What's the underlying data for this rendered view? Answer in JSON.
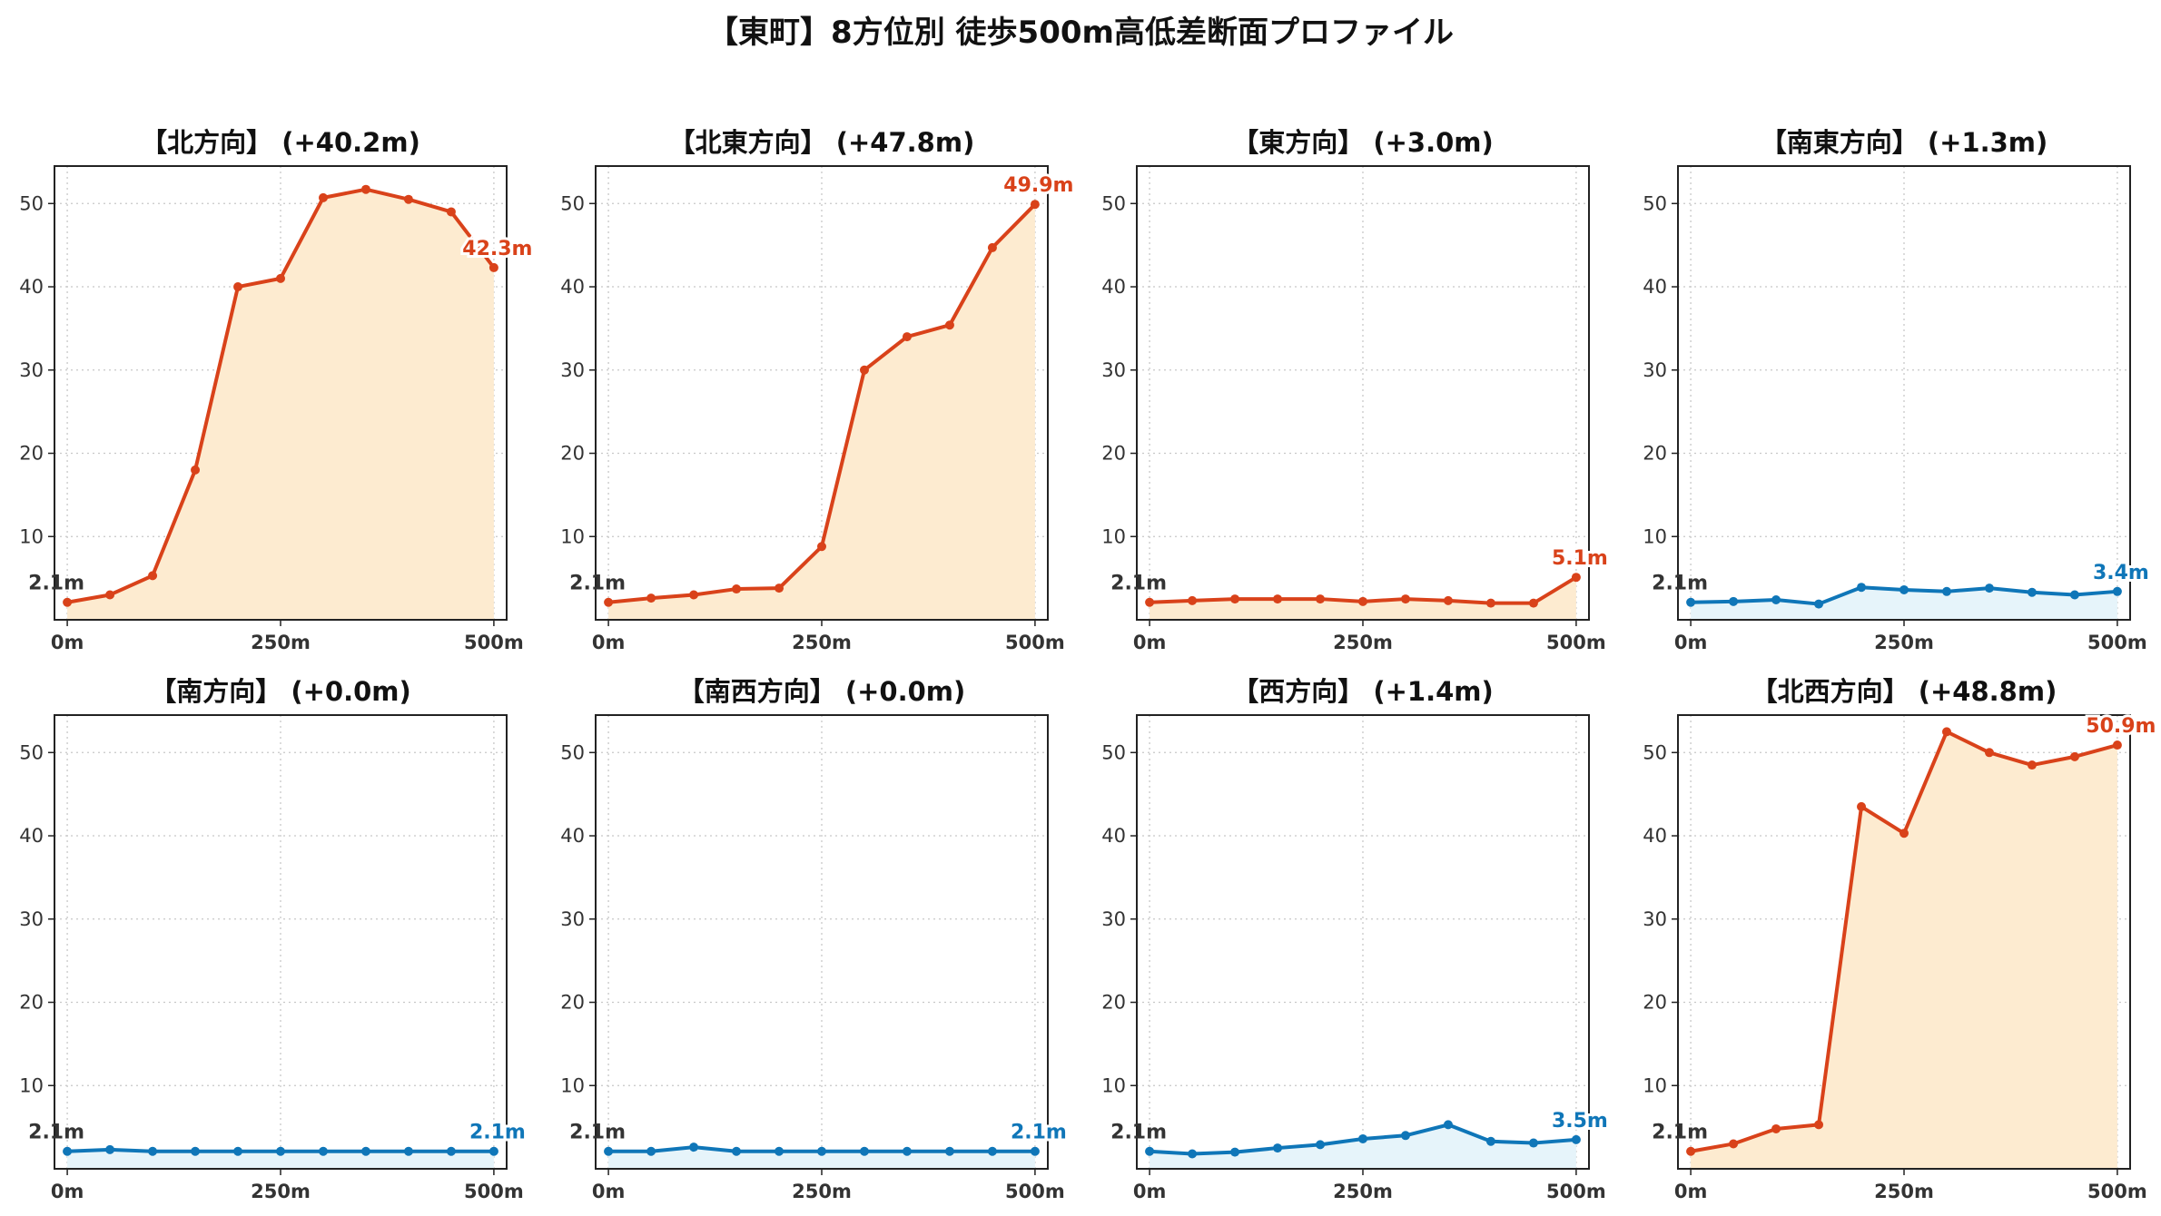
{
  "title": "【東町】8方位別 徒歩500m高低差断面プロファイル",
  "colors": {
    "up_line": "#d9421a",
    "up_fill": "#fdebd0",
    "flat_line": "#0f76b8",
    "flat_fill": "#e6f4fa",
    "grid": "#c8c8c8",
    "start_label": "#333333"
  },
  "chart_data": [
    {
      "type": "line",
      "title": "【北方向】 (+40.2m)",
      "trend": "up",
      "x": [
        0,
        50,
        100,
        150,
        200,
        250,
        300,
        350,
        400,
        450,
        500
      ],
      "values": [
        2.1,
        3.0,
        5.3,
        18.0,
        40.0,
        41.0,
        50.7,
        51.7,
        50.5,
        49.0,
        42.3
      ],
      "start_label": "2.1m",
      "end_label": "42.3m",
      "xticks": [
        "0m",
        "250m",
        "500m"
      ],
      "yticks": [
        10,
        20,
        30,
        40,
        50
      ],
      "ylim": [
        0,
        54.5
      ],
      "xlim": [
        -15,
        515
      ],
      "grid": true
    },
    {
      "type": "line",
      "title": "【北東方向】 (+47.8m)",
      "trend": "up",
      "x": [
        0,
        50,
        100,
        150,
        200,
        250,
        300,
        350,
        400,
        450,
        500
      ],
      "values": [
        2.1,
        2.6,
        3.0,
        3.7,
        3.8,
        8.8,
        30.0,
        34.0,
        35.4,
        44.7,
        49.9
      ],
      "start_label": "2.1m",
      "end_label": "49.9m",
      "xticks": [
        "0m",
        "250m",
        "500m"
      ],
      "yticks": [
        10,
        20,
        30,
        40,
        50
      ],
      "ylim": [
        0,
        54.5
      ],
      "xlim": [
        -15,
        515
      ],
      "grid": true
    },
    {
      "type": "line",
      "title": "【東方向】 (+3.0m)",
      "trend": "up",
      "x": [
        0,
        50,
        100,
        150,
        200,
        250,
        300,
        350,
        400,
        450,
        500
      ],
      "values": [
        2.1,
        2.3,
        2.5,
        2.5,
        2.5,
        2.2,
        2.5,
        2.3,
        2.0,
        2.0,
        5.1
      ],
      "start_label": "2.1m",
      "end_label": "5.1m",
      "xticks": [
        "0m",
        "250m",
        "500m"
      ],
      "yticks": [
        10,
        20,
        30,
        40,
        50
      ],
      "ylim": [
        0,
        54.5
      ],
      "xlim": [
        -15,
        515
      ],
      "grid": true
    },
    {
      "type": "line",
      "title": "【南東方向】 (+1.3m)",
      "trend": "flat",
      "x": [
        0,
        50,
        100,
        150,
        200,
        250,
        300,
        350,
        400,
        450,
        500
      ],
      "values": [
        2.1,
        2.2,
        2.4,
        1.9,
        3.9,
        3.6,
        3.4,
        3.8,
        3.3,
        3.0,
        3.4
      ],
      "start_label": "2.1m",
      "end_label": "3.4m",
      "xticks": [
        "0m",
        "250m",
        "500m"
      ],
      "yticks": [
        10,
        20,
        30,
        40,
        50
      ],
      "ylim": [
        0,
        54.5
      ],
      "xlim": [
        -15,
        515
      ],
      "grid": true
    },
    {
      "type": "line",
      "title": "【南方向】 (+0.0m)",
      "trend": "flat",
      "x": [
        0,
        50,
        100,
        150,
        200,
        250,
        300,
        350,
        400,
        450,
        500
      ],
      "values": [
        2.1,
        2.3,
        2.1,
        2.1,
        2.1,
        2.1,
        2.1,
        2.1,
        2.1,
        2.1,
        2.1
      ],
      "start_label": "2.1m",
      "end_label": "2.1m",
      "xticks": [
        "0m",
        "250m",
        "500m"
      ],
      "yticks": [
        10,
        20,
        30,
        40,
        50
      ],
      "ylim": [
        0,
        54.5
      ],
      "xlim": [
        -15,
        515
      ],
      "grid": true
    },
    {
      "type": "line",
      "title": "【南西方向】 (+0.0m)",
      "trend": "flat",
      "x": [
        0,
        50,
        100,
        150,
        200,
        250,
        300,
        350,
        400,
        450,
        500
      ],
      "values": [
        2.1,
        2.1,
        2.6,
        2.1,
        2.1,
        2.1,
        2.1,
        2.1,
        2.1,
        2.1,
        2.1
      ],
      "start_label": "2.1m",
      "end_label": "2.1m",
      "xticks": [
        "0m",
        "250m",
        "500m"
      ],
      "yticks": [
        10,
        20,
        30,
        40,
        50
      ],
      "ylim": [
        0,
        54.5
      ],
      "xlim": [
        -15,
        515
      ],
      "grid": true
    },
    {
      "type": "line",
      "title": "【西方向】 (+1.4m)",
      "trend": "flat",
      "x": [
        0,
        50,
        100,
        150,
        200,
        250,
        300,
        350,
        400,
        450,
        500
      ],
      "values": [
        2.1,
        1.8,
        2.0,
        2.5,
        2.9,
        3.6,
        4.0,
        5.3,
        3.3,
        3.1,
        3.5
      ],
      "start_label": "2.1m",
      "end_label": "3.5m",
      "xticks": [
        "0m",
        "250m",
        "500m"
      ],
      "yticks": [
        10,
        20,
        30,
        40,
        50
      ],
      "ylim": [
        0,
        54.5
      ],
      "xlim": [
        -15,
        515
      ],
      "grid": true
    },
    {
      "type": "line",
      "title": "【北西方向】 (+48.8m)",
      "trend": "up",
      "x": [
        0,
        50,
        100,
        150,
        200,
        250,
        300,
        350,
        400,
        450,
        500
      ],
      "values": [
        2.1,
        3.0,
        4.8,
        5.3,
        43.5,
        40.3,
        52.5,
        50.0,
        48.5,
        49.5,
        50.9
      ],
      "start_label": "2.1m",
      "end_label": "50.9m",
      "xticks": [
        "0m",
        "250m",
        "500m"
      ],
      "yticks": [
        10,
        20,
        30,
        40,
        50
      ],
      "ylim": [
        0,
        54.5
      ],
      "xlim": [
        -15,
        515
      ],
      "grid": true
    }
  ]
}
